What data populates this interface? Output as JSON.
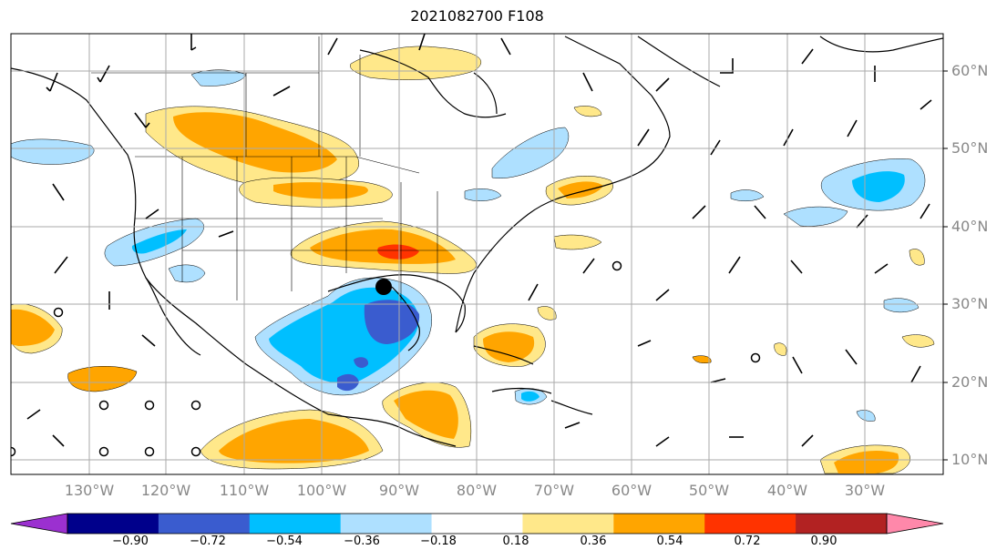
{
  "title": "2021082700 F108",
  "map": {
    "lat_labels": [
      "60°N",
      "50°N",
      "40°N",
      "30°N",
      "20°N",
      "10°N"
    ],
    "lon_labels": [
      "130°W",
      "120°W",
      "110°W",
      "100°W",
      "90°W",
      "80°W",
      "70°W",
      "60°W",
      "50°W",
      "40°W",
      "30°W"
    ],
    "graticule_color": "#aaaaaa",
    "coastline_color": "#000000",
    "center_marker": "black filled circle"
  },
  "colorbar": {
    "tick_labels": [
      "−0.90",
      "−0.72",
      "−0.54",
      "−0.36",
      "−0.18",
      "0.18",
      "0.36",
      "0.54",
      "0.72",
      "0.90"
    ],
    "colors": [
      "#9b30d0",
      "#00008b",
      "#3a5ccf",
      "#00bfff",
      "#aee0ff",
      "#ffffff",
      "#ffe88a",
      "#ffa500",
      "#ff3300",
      "#b22222",
      "#ff88aa"
    ]
  }
}
